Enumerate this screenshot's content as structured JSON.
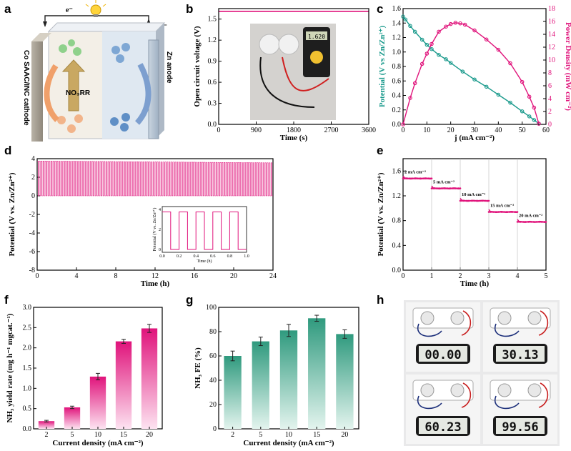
{
  "panels": {
    "a": "a",
    "b": "b",
    "c": "c",
    "d": "d",
    "e": "e",
    "f": "f",
    "g": "g",
    "h": "h"
  },
  "schematic": {
    "electron_left": "e⁻",
    "electron_right": "e⁻",
    "cathode_label": "Co SAAC/INC cathode",
    "anode_label": "Zn anode",
    "reaction": "NO₃RR"
  },
  "photo_h": {
    "timers": [
      "00.00",
      "30.13",
      "60.23",
      "99.56"
    ]
  },
  "chart_data": [
    {
      "id": "b",
      "type": "line",
      "x": [
        0,
        3600
      ],
      "y": [
        1.61,
        1.61
      ],
      "xlabel": "Time (s)",
      "ylabel": "Open circuit voltage (V)",
      "xlim": [
        0,
        3600
      ],
      "ylim": [
        0,
        1.65
      ],
      "xticks": [
        0,
        900,
        1800,
        2700,
        3600
      ],
      "yticks": [
        0.0,
        0.3,
        0.6,
        0.9,
        1.2,
        1.5
      ],
      "ytick_labels": [
        "0.0",
        "0.3",
        "0.6",
        "0.9",
        "1.2",
        "1.5"
      ],
      "photo_display": "1.620",
      "color": "#e0137b"
    },
    {
      "id": "c",
      "type": "line",
      "xlabel": "j (mA cm⁻²)",
      "ylabel": "Potential (V vs Zn/Zn²⁺)",
      "ylabel_right": "Power Density (mW cm⁻²)",
      "xlim": [
        0,
        60
      ],
      "ylim": [
        0,
        1.6
      ],
      "ylim_right": [
        0,
        18
      ],
      "xticks": [
        0,
        10,
        20,
        30,
        40,
        50,
        60
      ],
      "yticks": [
        0.0,
        0.2,
        0.4,
        0.6,
        0.8,
        1.0,
        1.2,
        1.4,
        1.6
      ],
      "ytick_labels": [
        "0.0",
        "0.2",
        "0.4",
        "0.6",
        "0.8",
        "1.0",
        "1.2",
        "1.4",
        "1.6"
      ],
      "yticks_right": [
        0,
        2,
        4,
        6,
        8,
        10,
        12,
        14,
        16,
        18
      ],
      "series": [
        {
          "axis": "left",
          "color": "#1a9a8c",
          "x": [
            0,
            1,
            3,
            5,
            8,
            10,
            12,
            15,
            18,
            20,
            25,
            30,
            35,
            40,
            45,
            50,
            53,
            55,
            57
          ],
          "y": [
            1.49,
            1.45,
            1.36,
            1.28,
            1.17,
            1.1,
            1.04,
            0.96,
            0.9,
            0.85,
            0.73,
            0.62,
            0.52,
            0.41,
            0.3,
            0.18,
            0.11,
            0.06,
            0.01
          ]
        },
        {
          "axis": "right",
          "color": "#e0137b",
          "x": [
            0,
            3,
            5,
            8,
            10,
            12,
            15,
            18,
            20,
            22,
            24,
            26,
            30,
            35,
            40,
            45,
            50,
            53,
            55,
            57
          ],
          "y": [
            0,
            4.1,
            6.4,
            9.4,
            11,
            12.5,
            14.4,
            15.2,
            15.6,
            15.8,
            15.7,
            15.5,
            14.6,
            13.2,
            11.6,
            9.5,
            6.6,
            4.3,
            2.6,
            0.1
          ]
        }
      ]
    },
    {
      "id": "d",
      "type": "line",
      "xlabel": "Time (h)",
      "ylabel": "Potential (V vs. Zn/Zn²⁺)",
      "xlim": [
        0,
        24
      ],
      "ylim": [
        -8,
        4
      ],
      "xticks": [
        0,
        4,
        8,
        12,
        16,
        20,
        24
      ],
      "yticks": [
        -8,
        -6,
        -4,
        -2,
        0,
        2,
        4
      ],
      "cycle_high": 3.75,
      "cycle_low": 0,
      "cycles_per_hour": 5,
      "inset": {
        "xlabel": "Time (h)",
        "ylabel": "Potential (V vs. Zn/Zn²⁺)",
        "xticks": [
          "0.0",
          "0.2",
          "0.4",
          "0.6",
          "0.8",
          "1.0"
        ],
        "yticks": [
          "0",
          "2",
          "4"
        ]
      },
      "color": "#e0137b"
    },
    {
      "id": "e",
      "type": "line",
      "xlabel": "Time (h)",
      "ylabel": "Potential (V vs. Zn/Zn²⁺)",
      "xlim": [
        0,
        5
      ],
      "ylim": [
        0,
        1.8
      ],
      "xticks": [
        0,
        1,
        2,
        3,
        4,
        5
      ],
      "yticks": [
        0.0,
        0.4,
        0.8,
        1.2,
        1.6
      ],
      "ytick_labels": [
        "0.0",
        "0.4",
        "0.8",
        "1.2",
        "1.6"
      ],
      "steps": [
        {
          "label": "2 mA cm⁻²",
          "x0": 0,
          "x1": 1,
          "y": 1.48
        },
        {
          "label": "5 mA cm⁻²",
          "x0": 1,
          "x1": 2,
          "y": 1.32
        },
        {
          "label": "10 mA cm⁻²",
          "x0": 2,
          "x1": 3,
          "y": 1.12
        },
        {
          "label": "15 mA cm⁻²",
          "x0": 3,
          "x1": 4,
          "y": 0.94
        },
        {
          "label": "20 mA cm⁻²",
          "x0": 4,
          "x1": 5,
          "y": 0.78
        }
      ],
      "color": "#e0137b"
    },
    {
      "id": "f",
      "type": "bar",
      "categories": [
        "2",
        "5",
        "10",
        "15",
        "20"
      ],
      "values": [
        0.19,
        0.53,
        1.29,
        2.16,
        2.48
      ],
      "errors": [
        0.02,
        0.03,
        0.08,
        0.05,
        0.1
      ],
      "xlabel": "Current density (mA cm⁻²)",
      "ylabel": "NH₃ yield rate (mg h⁻¹ mgcat.⁻¹)",
      "ylim": [
        0,
        3.0
      ],
      "yticks": [
        0.0,
        0.5,
        1.0,
        1.5,
        2.0,
        2.5,
        3.0
      ],
      "ytick_labels": [
        "0.0",
        "0.5",
        "1.0",
        "1.5",
        "2.0",
        "2.5",
        "3.0"
      ],
      "color": "#e83ea6"
    },
    {
      "id": "g",
      "type": "bar",
      "categories": [
        "2",
        "5",
        "10",
        "15",
        "20"
      ],
      "values": [
        60,
        72,
        81,
        91,
        78
      ],
      "errors": [
        4,
        3.5,
        5,
        2.5,
        3.5
      ],
      "xlabel": "Current density (mA cm⁻²)",
      "ylabel": "NH₃ FE (%)",
      "ylim": [
        0,
        100
      ],
      "yticks": [
        0,
        20,
        40,
        60,
        80,
        100
      ],
      "color": "#3fa589"
    }
  ]
}
